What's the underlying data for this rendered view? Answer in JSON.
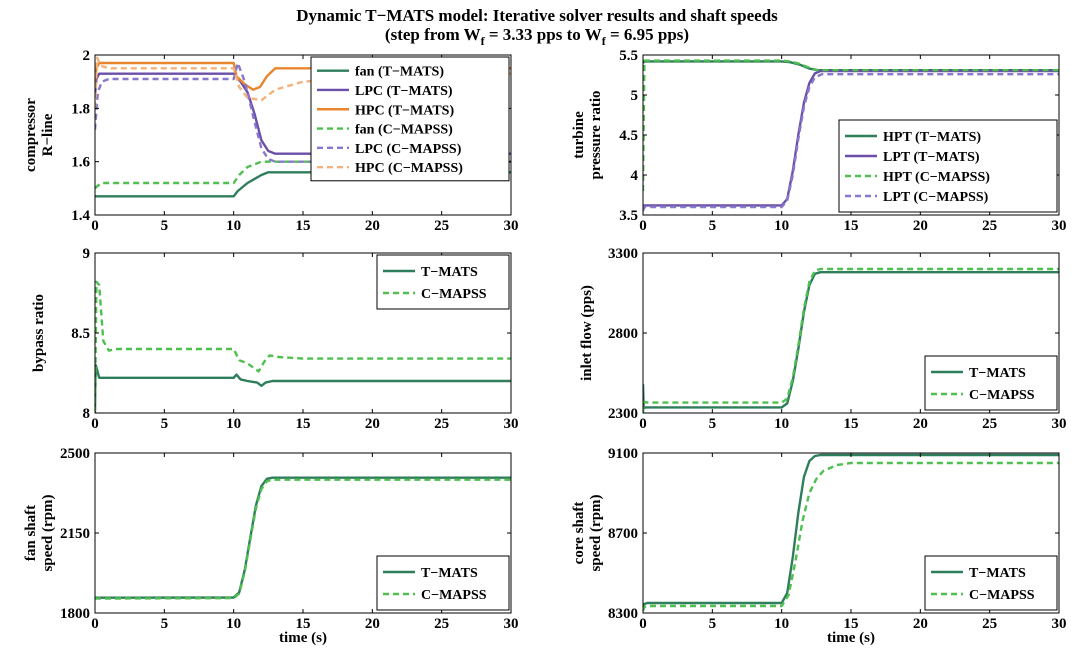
{
  "figure": {
    "title_line1": "Dynamic T−MATS model: Iterative solver results and shaft speeds",
    "title_line2_prefix": "(step from W",
    "title_sub1": "f",
    "title_line2_mid": " = 3.33 pps to W",
    "title_sub2": "f",
    "title_line2_suffix": " = 6.95 pps)"
  },
  "colors": {
    "fan_tmats": "#2e7d5b",
    "lpc_tmats": "#6b4fa8",
    "hpc_tmats": "#e8862e",
    "fan_cmapss": "#4fbf4f",
    "lpc_cmapss": "#8877cc",
    "hpc_cmapss": "#f4b27a",
    "tmats": "#2e7d5b",
    "cmapss": "#4fbf4f"
  },
  "chart_data": [
    {
      "type": "line",
      "id": "compressor-rline",
      "ylabel_lines": [
        "compressor",
        "R−line"
      ],
      "xlabel": "",
      "xlim": [
        0,
        30
      ],
      "ylim": [
        1.4,
        2.0
      ],
      "xticks": [
        "0",
        "5",
        "10",
        "15",
        "20",
        "25",
        "30"
      ],
      "xtick_values": [
        0,
        5,
        10,
        15,
        20,
        25,
        30
      ],
      "yticks": [
        "1.4",
        "1.6",
        "1.8",
        "2"
      ],
      "ytick_values": [
        1.4,
        1.6,
        1.8,
        2.0
      ],
      "legend_position": "top-right",
      "series": [
        {
          "name": "fan (T−MATS)",
          "color_key": "fan_tmats",
          "dash": false,
          "x": [
            0,
            0.2,
            10,
            10.3,
            11,
            12,
            12.5,
            13,
            30
          ],
          "y": [
            1.47,
            1.47,
            1.47,
            1.49,
            1.52,
            1.55,
            1.56,
            1.56,
            1.56
          ]
        },
        {
          "name": "LPC (T−MATS)",
          "color_key": "lpc_tmats",
          "dash": false,
          "x": [
            0,
            0.1,
            0.3,
            10,
            10.5,
            11,
            11.5,
            12,
            12.5,
            13,
            30
          ],
          "y": [
            1.85,
            1.91,
            1.93,
            1.93,
            1.9,
            1.86,
            1.78,
            1.68,
            1.64,
            1.63,
            1.63
          ]
        },
        {
          "name": "HPC (T−MATS)",
          "color_key": "hpc_tmats",
          "dash": false,
          "x": [
            0,
            0.1,
            0.3,
            10,
            10.2,
            10.8,
            11.4,
            11.9,
            12.4,
            13,
            30
          ],
          "y": [
            1.9,
            1.95,
            1.97,
            1.97,
            1.92,
            1.89,
            1.87,
            1.88,
            1.92,
            1.95,
            1.95
          ]
        },
        {
          "name": "fan (C−MAPSS)",
          "color_key": "fan_cmapss",
          "dash": true,
          "x": [
            0,
            0.2,
            0.5,
            10,
            10.4,
            11,
            12,
            13,
            30
          ],
          "y": [
            1.5,
            1.51,
            1.52,
            1.52,
            1.55,
            1.58,
            1.6,
            1.6,
            1.6
          ]
        },
        {
          "name": "LPC (C−MAPSS)",
          "color_key": "lpc_cmapss",
          "dash": true,
          "x": [
            0,
            0.2,
            0.5,
            1,
            10,
            10.3,
            10.8,
            11.5,
            12,
            12.5,
            13,
            30
          ],
          "y": [
            1.72,
            1.86,
            1.9,
            1.91,
            1.91,
            1.97,
            1.9,
            1.75,
            1.65,
            1.61,
            1.6,
            1.6
          ]
        },
        {
          "name": "HPC (C−MAPSS)",
          "color_key": "hpc_cmapss",
          "dash": true,
          "x": [
            0,
            0.15,
            0.4,
            1,
            10,
            10.4,
            11,
            12,
            13,
            15,
            20,
            25,
            30
          ],
          "y": [
            1.8,
            1.99,
            1.96,
            1.95,
            1.95,
            1.88,
            1.84,
            1.83,
            1.87,
            1.9,
            1.92,
            1.93,
            1.93
          ]
        }
      ]
    },
    {
      "type": "line",
      "id": "turbine-pressure-ratio",
      "ylabel_lines": [
        "turbine",
        "pressure ratio"
      ],
      "xlabel": "",
      "xlim": [
        0,
        30
      ],
      "ylim": [
        3.5,
        5.5
      ],
      "xticks": [
        "0",
        "5",
        "10",
        "15",
        "20",
        "25",
        "30"
      ],
      "xtick_values": [
        0,
        5,
        10,
        15,
        20,
        25,
        30
      ],
      "yticks": [
        "3.5",
        "4",
        "4.5",
        "5",
        "5.5"
      ],
      "ytick_values": [
        3.5,
        4,
        4.5,
        5,
        5.5
      ],
      "legend_position": "bottom-right",
      "series": [
        {
          "name": "HPT (T−MATS)",
          "color_key": "fan_tmats",
          "dash": false,
          "x": [
            0,
            0.1,
            10,
            10.6,
            11.3,
            12,
            12.6,
            30
          ],
          "y": [
            5.4,
            5.42,
            5.42,
            5.41,
            5.38,
            5.33,
            5.31,
            5.31
          ]
        },
        {
          "name": "LPT (T−MATS)",
          "color_key": "lpc_tmats",
          "dash": false,
          "x": [
            0,
            0.1,
            10,
            10.4,
            10.8,
            11.2,
            11.6,
            12,
            12.4,
            12.8,
            30
          ],
          "y": [
            3.6,
            3.62,
            3.62,
            3.7,
            4.05,
            4.5,
            4.9,
            5.15,
            5.27,
            5.3,
            5.3
          ]
        },
        {
          "name": "HPT (C−MAPSS)",
          "color_key": "fan_cmapss",
          "dash": true,
          "x": [
            0,
            0.1,
            10,
            10.6,
            11.3,
            12,
            12.6,
            30
          ],
          "y": [
            3.8,
            5.43,
            5.43,
            5.42,
            5.39,
            5.34,
            5.31,
            5.31
          ]
        },
        {
          "name": "LPT (C−MAPSS)",
          "color_key": "lpc_cmapss",
          "dash": true,
          "x": [
            0,
            0.1,
            10,
            10.4,
            10.8,
            11.2,
            11.6,
            12,
            12.4,
            12.9,
            30
          ],
          "y": [
            3.55,
            3.6,
            3.6,
            3.68,
            4.0,
            4.45,
            4.85,
            5.1,
            5.22,
            5.26,
            5.26
          ]
        }
      ]
    },
    {
      "type": "line",
      "id": "bypass-ratio",
      "ylabel_lines": [
        "bypass ratio"
      ],
      "xlabel": "",
      "xlim": [
        0,
        30
      ],
      "ylim": [
        8.0,
        9.0
      ],
      "xticks": [
        "0",
        "5",
        "10",
        "15",
        "20",
        "25",
        "30"
      ],
      "xtick_values": [
        0,
        5,
        10,
        15,
        20,
        25,
        30
      ],
      "yticks": [
        "8",
        "8.5",
        "9"
      ],
      "ytick_values": [
        8,
        8.5,
        9
      ],
      "legend_position": "top-right",
      "series": [
        {
          "name": "T−MATS",
          "color_key": "tmats",
          "dash": false,
          "x": [
            0,
            0.05,
            0.3,
            10,
            10.2,
            10.5,
            11,
            11.7,
            12,
            12.3,
            12.8,
            13.5,
            30
          ],
          "y": [
            8.02,
            8.3,
            8.22,
            8.22,
            8.24,
            8.21,
            8.2,
            8.19,
            8.17,
            8.19,
            8.2,
            8.2,
            8.2
          ]
        },
        {
          "name": "C−MAPSS",
          "color_key": "cmapss",
          "dash": true,
          "x": [
            0,
            0.1,
            0.3,
            0.6,
            1,
            1.5,
            10,
            10.4,
            11,
            11.8,
            12.2,
            12.6,
            13.2,
            15,
            30
          ],
          "y": [
            8.0,
            8.82,
            8.8,
            8.45,
            8.39,
            8.4,
            8.4,
            8.33,
            8.31,
            8.26,
            8.32,
            8.36,
            8.35,
            8.34,
            8.34
          ]
        }
      ]
    },
    {
      "type": "line",
      "id": "inlet-flow",
      "ylabel_lines": [
        "inlet flow (pps)"
      ],
      "xlabel": "",
      "xlim": [
        0,
        30
      ],
      "ylim": [
        2300,
        3300
      ],
      "xticks": [
        "0",
        "5",
        "10",
        "15",
        "20",
        "25",
        "30"
      ],
      "xtick_values": [
        0,
        5,
        10,
        15,
        20,
        25,
        30
      ],
      "yticks": [
        "2300",
        "2800",
        "3300"
      ],
      "ytick_values": [
        2300,
        2800,
        3300
      ],
      "legend_position": "bottom-right",
      "series": [
        {
          "name": "T−MATS",
          "color_key": "tmats",
          "dash": false,
          "x": [
            0,
            0.05,
            0.2,
            10,
            10.4,
            10.8,
            11.2,
            11.6,
            12,
            12.4,
            12.8,
            30
          ],
          "y": [
            2480,
            2330,
            2335,
            2335,
            2360,
            2500,
            2700,
            2930,
            3100,
            3170,
            3180,
            3180
          ]
        },
        {
          "name": "C−MAPSS",
          "color_key": "cmapss",
          "dash": true,
          "x": [
            0,
            0.05,
            0.3,
            10,
            10.4,
            10.8,
            11.2,
            11.6,
            12,
            12.4,
            12.8,
            30
          ],
          "y": [
            2300,
            2370,
            2365,
            2365,
            2390,
            2520,
            2720,
            2950,
            3120,
            3190,
            3200,
            3200
          ]
        }
      ]
    },
    {
      "type": "line",
      "id": "fan-shaft-speed",
      "ylabel_lines": [
        "fan shaft",
        "speed (rpm)"
      ],
      "xlabel": "time (s)",
      "xlim": [
        0,
        30
      ],
      "ylim": [
        1800,
        2500
      ],
      "xticks": [
        "0",
        "5",
        "10",
        "15",
        "20",
        "25",
        "30"
      ],
      "xtick_values": [
        0,
        5,
        10,
        15,
        20,
        25,
        30
      ],
      "yticks": [
        "1800",
        "2150",
        "2500"
      ],
      "ytick_values": [
        1800,
        2150,
        2500
      ],
      "legend_position": "bottom-right",
      "series": [
        {
          "name": "T−MATS",
          "color_key": "tmats",
          "dash": false,
          "x": [
            0,
            10,
            10.4,
            10.8,
            11.2,
            11.6,
            12,
            12.4,
            12.8,
            30
          ],
          "y": [
            1867,
            1868,
            1890,
            1990,
            2130,
            2270,
            2355,
            2387,
            2392,
            2392
          ]
        },
        {
          "name": "C−MAPSS",
          "color_key": "cmapss",
          "dash": true,
          "x": [
            0,
            10,
            10.4,
            10.8,
            11.2,
            11.6,
            12,
            12.4,
            12.8,
            30
          ],
          "y": [
            1863,
            1865,
            1885,
            1982,
            2120,
            2258,
            2342,
            2376,
            2383,
            2383
          ]
        }
      ]
    },
    {
      "type": "line",
      "id": "core-shaft-speed",
      "ylabel_lines": [
        "core shaft",
        "speed (rpm)"
      ],
      "xlabel": "time (s)",
      "xlim": [
        0,
        30
      ],
      "ylim": [
        8300,
        9100
      ],
      "xticks": [
        "0",
        "5",
        "10",
        "15",
        "20",
        "25",
        "30"
      ],
      "xtick_values": [
        0,
        5,
        10,
        15,
        20,
        25,
        30
      ],
      "yticks": [
        "8300",
        "8700",
        "9100"
      ],
      "ytick_values": [
        8300,
        8700,
        9100
      ],
      "legend_position": "bottom-right",
      "series": [
        {
          "name": "T−MATS",
          "color_key": "tmats",
          "dash": false,
          "x": [
            0,
            0.1,
            0.3,
            10,
            10.4,
            10.8,
            11.2,
            11.6,
            12,
            12.4,
            12.8,
            30
          ],
          "y": [
            8335,
            8345,
            8350,
            8350,
            8400,
            8580,
            8800,
            8980,
            9060,
            9085,
            9090,
            9090
          ]
        },
        {
          "name": "C−MAPSS",
          "color_key": "cmapss",
          "dash": true,
          "x": [
            0,
            0.1,
            0.3,
            10,
            10.5,
            11,
            11.5,
            12,
            12.5,
            13,
            14,
            15,
            30
          ],
          "y": [
            8310,
            8330,
            8335,
            8335,
            8390,
            8560,
            8760,
            8900,
            8970,
            9010,
            9040,
            9050,
            9050
          ]
        }
      ]
    }
  ]
}
